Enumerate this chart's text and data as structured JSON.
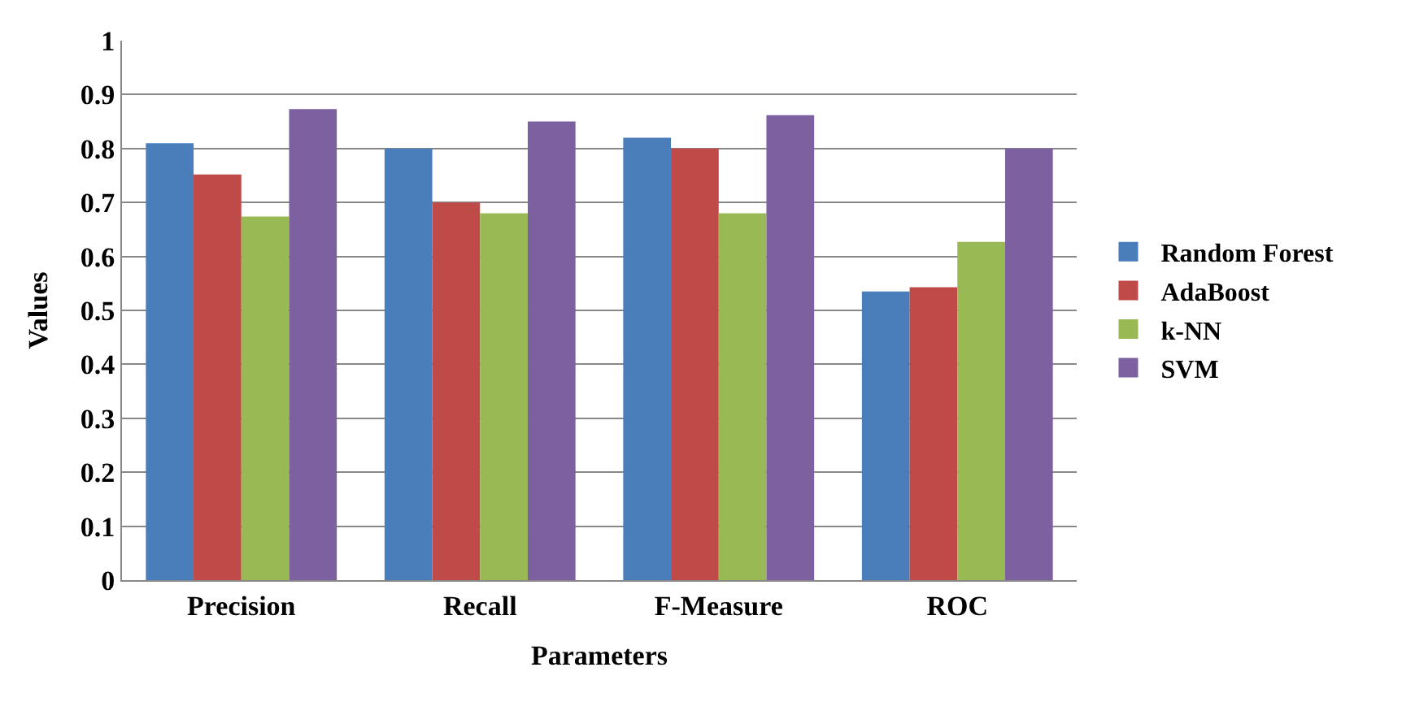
{
  "chart_data": {
    "type": "bar",
    "xlabel": "Parameters",
    "ylabel": "Values",
    "categories": [
      "Precision",
      "Recall",
      "F-Measure",
      "ROC"
    ],
    "series": [
      {
        "name": "Random Forest",
        "color": "#4a7ebb",
        "values": [
          0.81,
          0.8,
          0.82,
          0.535
        ]
      },
      {
        "name": "AdaBoost",
        "color": "#be4b48",
        "values": [
          0.752,
          0.7,
          0.8,
          0.543
        ]
      },
      {
        "name": "k-NN",
        "color": "#98b954",
        "values": [
          0.674,
          0.68,
          0.68,
          0.627
        ]
      },
      {
        "name": "SVM",
        "color": "#7d60a0",
        "values": [
          0.873,
          0.85,
          0.862,
          0.8
        ]
      }
    ],
    "ylim": [
      0,
      1
    ],
    "yticks": [
      0,
      0.1,
      0.2,
      0.3,
      0.4,
      0.5,
      0.6,
      0.7,
      0.8,
      0.9,
      1
    ],
    "grid": "y",
    "legend": "right"
  }
}
